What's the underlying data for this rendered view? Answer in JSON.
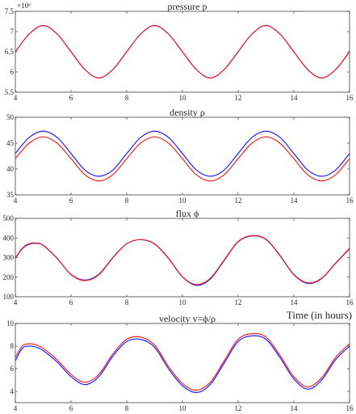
{
  "figure": {
    "xlabel": "Time (in hours)",
    "colors": {
      "series_a": "#1f1fff",
      "series_b": "#ee2222",
      "axis": "#262626"
    }
  },
  "chart_data": [
    {
      "type": "line",
      "title": "pressure p",
      "xlim": [
        4,
        16
      ],
      "ylim": [
        5.5,
        7.5
      ],
      "y_exponent_label": "×10⁶",
      "xticks": [
        4,
        6,
        8,
        10,
        12,
        14,
        16
      ],
      "yticks": [
        5.5,
        6,
        6.5,
        7,
        7.5
      ],
      "ytick_labels": [
        "5.5",
        "6",
        "6.5",
        "7",
        "7.5"
      ],
      "series": [
        {
          "color": "#1f1fff",
          "x": [
            4.0,
            4.5,
            5.0,
            5.5,
            6.0,
            6.5,
            7.0,
            7.5,
            8.0,
            8.5,
            9.0,
            9.5,
            10.0,
            10.5,
            11.0,
            11.5,
            12.0,
            12.5,
            13.0,
            13.5,
            14.0,
            14.5,
            15.0,
            15.5,
            16.0
          ],
          "y": [
            6.5,
            6.94,
            7.15,
            6.94,
            6.5,
            6.06,
            5.85,
            6.06,
            6.5,
            6.94,
            7.15,
            6.94,
            6.5,
            6.06,
            5.85,
            6.06,
            6.5,
            6.94,
            7.15,
            6.94,
            6.5,
            6.06,
            5.85,
            6.06,
            6.5
          ]
        },
        {
          "color": "#ee2222",
          "x": [
            4.0,
            4.5,
            5.0,
            5.5,
            6.0,
            6.5,
            7.0,
            7.5,
            8.0,
            8.5,
            9.0,
            9.5,
            10.0,
            10.5,
            11.0,
            11.5,
            12.0,
            12.5,
            13.0,
            13.5,
            14.0,
            14.5,
            15.0,
            15.5,
            16.0
          ],
          "y": [
            6.5,
            6.94,
            7.15,
            6.94,
            6.5,
            6.06,
            5.85,
            6.06,
            6.5,
            6.94,
            7.15,
            6.94,
            6.5,
            6.06,
            5.85,
            6.06,
            6.5,
            6.94,
            7.15,
            6.94,
            6.5,
            6.06,
            5.85,
            6.06,
            6.5
          ]
        }
      ]
    },
    {
      "type": "line",
      "title": "density ρ",
      "xlim": [
        4,
        16
      ],
      "ylim": [
        35,
        50
      ],
      "xticks": [
        4,
        6,
        8,
        10,
        12,
        14,
        16
      ],
      "yticks": [
        35,
        40,
        45,
        50
      ],
      "ytick_labels": [
        "35",
        "40",
        "45",
        "50"
      ],
      "series": [
        {
          "color": "#1f1fff",
          "x": [
            4.0,
            4.5,
            5.0,
            5.5,
            6.0,
            6.5,
            7.0,
            7.5,
            8.0,
            8.5,
            9.0,
            9.5,
            10.0,
            10.5,
            11.0,
            11.5,
            12.0,
            12.5,
            13.0,
            13.5,
            14.0,
            14.5,
            15.0,
            15.5,
            16.0
          ],
          "y": [
            43.0,
            46.1,
            47.3,
            46.1,
            43.0,
            39.8,
            38.6,
            39.8,
            43.0,
            46.1,
            47.3,
            46.1,
            43.0,
            39.8,
            38.6,
            39.8,
            43.0,
            46.1,
            47.3,
            46.1,
            43.0,
            39.8,
            38.6,
            39.8,
            43.0
          ]
        },
        {
          "color": "#ee2222",
          "x": [
            4.0,
            4.5,
            5.0,
            5.5,
            6.0,
            6.5,
            7.0,
            7.5,
            8.0,
            8.5,
            9.0,
            9.5,
            10.0,
            10.5,
            11.0,
            11.5,
            12.0,
            12.5,
            13.0,
            13.5,
            14.0,
            14.5,
            15.0,
            15.5,
            16.0
          ],
          "y": [
            42.0,
            45.0,
            46.2,
            45.0,
            42.0,
            38.9,
            37.7,
            38.9,
            42.0,
            45.0,
            46.2,
            45.0,
            42.0,
            38.9,
            37.7,
            38.9,
            42.0,
            45.0,
            46.2,
            45.0,
            42.0,
            38.9,
            37.7,
            38.9,
            42.0
          ]
        }
      ]
    },
    {
      "type": "line",
      "title": "flux ϕ",
      "xlim": [
        4,
        16
      ],
      "ylim": [
        100,
        500
      ],
      "xticks": [
        4,
        6,
        8,
        10,
        12,
        14,
        16
      ],
      "yticks": [
        100,
        200,
        300,
        400,
        500
      ],
      "ytick_labels": [
        "100",
        "200",
        "300",
        "400",
        "500"
      ],
      "series": [
        {
          "color": "#1f1fff",
          "x": [
            4.0,
            4.25,
            4.5,
            4.75,
            5.0,
            5.5,
            6.0,
            6.5,
            7.0,
            7.5,
            8.0,
            8.5,
            9.0,
            9.5,
            10.0,
            10.5,
            11.0,
            11.5,
            12.0,
            12.5,
            13.0,
            13.5,
            14.0,
            14.5,
            15.0,
            15.5,
            16.0
          ],
          "y": [
            295,
            345,
            368,
            372,
            362,
            296,
            214,
            185,
            215,
            300,
            370,
            391,
            369,
            295,
            202,
            158,
            190,
            285,
            380,
            410,
            392,
            310,
            212,
            168,
            193,
            270,
            345
          ]
        },
        {
          "color": "#ee2222",
          "x": [
            4.0,
            4.25,
            4.5,
            4.75,
            5.0,
            5.5,
            6.0,
            6.5,
            7.0,
            7.5,
            8.0,
            8.5,
            9.0,
            9.5,
            10.0,
            10.5,
            11.0,
            11.5,
            12.0,
            12.5,
            13.0,
            13.5,
            14.0,
            14.5,
            15.0,
            15.5,
            16.0
          ],
          "y": [
            298,
            348,
            371,
            374,
            363,
            297,
            213,
            182,
            212,
            298,
            370,
            392,
            370,
            297,
            203,
            162,
            194,
            288,
            382,
            412,
            394,
            312,
            214,
            171,
            195,
            272,
            347
          ]
        }
      ]
    },
    {
      "type": "line",
      "title": "velocity v=ϕ/ρ",
      "xlim": [
        4,
        16
      ],
      "ylim": [
        3,
        10
      ],
      "xticks": [
        4,
        6,
        8,
        10,
        12,
        14,
        16
      ],
      "yticks": [
        4,
        6,
        8,
        10
      ],
      "ytick_labels": [
        "4",
        "6",
        "8",
        "10"
      ],
      "series": [
        {
          "color": "#1f1fff",
          "x": [
            4.0,
            4.25,
            4.5,
            4.75,
            5.0,
            5.5,
            6.0,
            6.5,
            7.0,
            7.5,
            8.0,
            8.5,
            9.0,
            9.5,
            10.0,
            10.5,
            11.0,
            11.5,
            12.0,
            12.5,
            13.0,
            13.5,
            14.0,
            14.5,
            15.0,
            15.5,
            16.0
          ],
          "y": [
            6.7,
            7.8,
            8.0,
            7.9,
            7.6,
            6.6,
            5.3,
            4.6,
            5.3,
            7.1,
            8.4,
            8.6,
            7.9,
            6.0,
            4.5,
            3.9,
            4.6,
            6.5,
            8.4,
            8.9,
            8.6,
            7.0,
            5.1,
            4.2,
            5.0,
            6.8,
            8.0
          ]
        },
        {
          "color": "#ee2222",
          "x": [
            4.0,
            4.25,
            4.5,
            4.75,
            5.0,
            5.5,
            6.0,
            6.5,
            7.0,
            7.5,
            8.0,
            8.5,
            9.0,
            9.5,
            10.0,
            10.5,
            11.0,
            11.5,
            12.0,
            12.5,
            13.0,
            13.5,
            14.0,
            14.5,
            15.0,
            15.5,
            16.0
          ],
          "y": [
            7.0,
            8.0,
            8.2,
            8.1,
            7.8,
            6.8,
            5.5,
            4.8,
            5.5,
            7.3,
            8.6,
            8.8,
            8.1,
            6.2,
            4.7,
            4.1,
            4.8,
            6.7,
            8.6,
            9.1,
            8.8,
            7.2,
            5.3,
            4.4,
            5.2,
            7.0,
            8.2
          ]
        }
      ]
    }
  ]
}
